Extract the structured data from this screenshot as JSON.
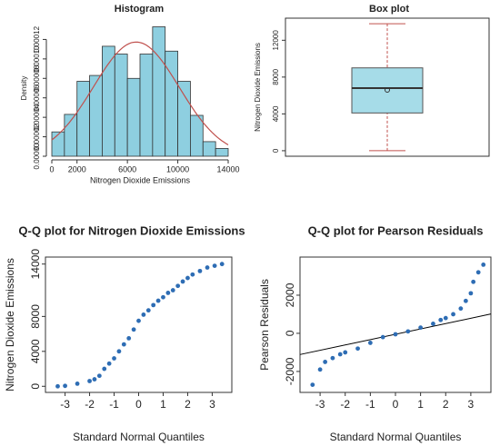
{
  "chart_data": [
    {
      "type": "histogram",
      "title": "Histogram",
      "x_label": "Nitrogen Dioxide Emissions",
      "y_label": "Density",
      "bins": [
        0,
        1000,
        2000,
        3000,
        4000,
        5000,
        6000,
        7000,
        8000,
        9000,
        10000,
        11000,
        12000,
        13000,
        14000
      ],
      "values": [
        2.5e-05,
        4.3e-05,
        7.7e-05,
        8.3e-05,
        0.000113,
        0.000105,
        8e-05,
        0.000105,
        0.000133,
        0.000108,
        7.7e-05,
        4.2e-05,
        1.5e-05,
        8e-06
      ],
      "color": "#8ecfe0",
      "curve_color": "#c0504d",
      "curve": {
        "mean": 6700,
        "sd": 3400
      },
      "xlim": [
        0,
        14000
      ],
      "xticks": [
        0,
        2000,
        6000,
        10000,
        14000
      ],
      "ylim": [
        0,
        0.00014
      ],
      "yticks": [
        {
          "value": 0,
          "label": "0.00000"
        },
        {
          "value": 2e-05,
          "label": "0.00002"
        },
        {
          "value": 4e-05,
          "label": "0.00004"
        },
        {
          "value": 6e-05,
          "label": "0.00006"
        },
        {
          "value": 8e-05,
          "label": "0.00008"
        },
        {
          "value": 0.0001,
          "label": "0.00010"
        },
        {
          "value": 0.00012,
          "label": "0.00012"
        }
      ]
    },
    {
      "type": "box",
      "title": "Box plot",
      "y_label": "Nitrogen Dioxide Emissions",
      "min": 0,
      "q1": 4100,
      "median": 6800,
      "q3": 9000,
      "max": 13800,
      "mean": 6600,
      "color": "#a6dce8",
      "whisker_color": "#c0504d",
      "ylim": [
        -600,
        14400
      ],
      "yticks": [
        0,
        4000,
        8000,
        12000
      ]
    },
    {
      "type": "qq",
      "title": "Q-Q plot for Nitrogen Dioxide Emissions",
      "x_label": "Standard Normal Quantiles",
      "y_label": "Nitrogen Dioxide Emissions",
      "x": [
        -3.3,
        -3,
        -2.5,
        -2,
        -1.8,
        -1.6,
        -1.4,
        -1.2,
        -1,
        -0.8,
        -0.6,
        -0.4,
        -0.2,
        0,
        0.2,
        0.4,
        0.6,
        0.8,
        1,
        1.2,
        1.4,
        1.6,
        1.8,
        2,
        2.2,
        2.5,
        2.8,
        3.1,
        3.4
      ],
      "values": [
        0,
        50,
        300,
        600,
        800,
        1200,
        2000,
        2600,
        3200,
        4000,
        4800,
        5500,
        6500,
        7500,
        8200,
        8700,
        9300,
        9800,
        10200,
        10700,
        11000,
        11500,
        12000,
        12400,
        12800,
        13200,
        13600,
        13800,
        14000
      ],
      "color": "#2e6db4",
      "xlim": [
        -3.8,
        3.8
      ],
      "xticks": [
        -3,
        -2,
        -1,
        0,
        1,
        2,
        3
      ],
      "ylim": [
        -700,
        14800
      ],
      "yticks": [
        0,
        4000,
        8000,
        14000
      ]
    },
    {
      "type": "qq",
      "title": "Q-Q plot for Pearson Residuals",
      "x_label": "Standard Normal Quantiles",
      "y_label": "Pearson Residuals",
      "x": [
        -3.3,
        -3,
        -2.8,
        -2.5,
        -2.2,
        -2,
        -1.5,
        -1,
        -0.5,
        0,
        0.5,
        1,
        1.5,
        1.8,
        2,
        2.3,
        2.6,
        2.8,
        3,
        3.1,
        3.3,
        3.5
      ],
      "values": [
        -2700,
        -1900,
        -1500,
        -1300,
        -1100,
        -1000,
        -800,
        -500,
        -200,
        -50,
        100,
        300,
        500,
        700,
        800,
        1000,
        1300,
        1700,
        2100,
        2700,
        3200,
        3600
      ],
      "color": "#2e6db4",
      "reference_intercept": -50,
      "reference_slope": 280,
      "xlim": [
        -3.8,
        3.8
      ],
      "xticks": [
        -3,
        -2,
        -1,
        0,
        1,
        2,
        3
      ],
      "ylim": [
        -3100,
        4000
      ],
      "yticks": [
        -2000,
        0,
        2000
      ]
    }
  ]
}
